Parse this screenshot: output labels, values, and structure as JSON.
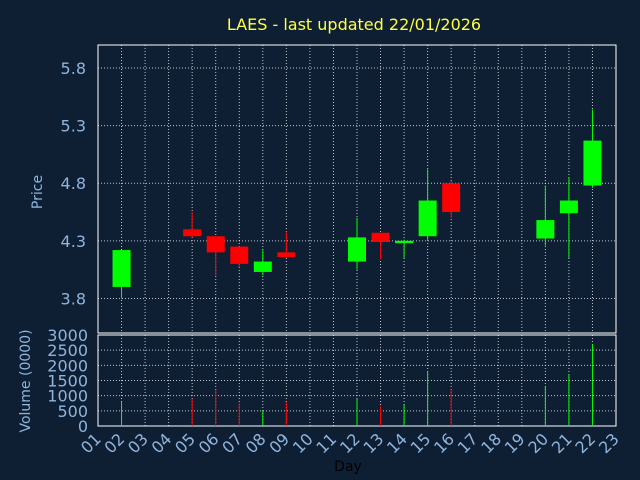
{
  "chart_data": {
    "type": "candlestick",
    "title": "LAES - last updated 22/01/2026",
    "xlabel": "Day",
    "ylabel_price": "Price",
    "ylabel_volume": "Volume (0000)",
    "x_ticks": [
      "01",
      "02",
      "03",
      "04",
      "05",
      "06",
      "07",
      "08",
      "09",
      "10",
      "11",
      "12",
      "13",
      "14",
      "15",
      "16",
      "17",
      "18",
      "19",
      "20",
      "21",
      "22",
      "23"
    ],
    "price_ticks": [
      "3.8",
      "4.3",
      "4.8",
      "5.3",
      "5.8"
    ],
    "price_ylim": [
      3.5,
      6.0
    ],
    "volume_ticks": [
      "0",
      "500",
      "1000",
      "1500",
      "2000",
      "2500",
      "3000"
    ],
    "volume_ylim": [
      0,
      3000
    ],
    "grid": true,
    "up_color": "#00ff00",
    "down_color": "#ff0000",
    "candles": [
      {
        "day": 2,
        "open": 3.9,
        "high": 4.22,
        "low": 3.8,
        "close": 4.22,
        "volume": 800
      },
      {
        "day": 5,
        "open": 4.4,
        "high": 4.55,
        "low": 4.33,
        "close": 4.34,
        "volume": 900
      },
      {
        "day": 6,
        "open": 4.34,
        "high": 4.34,
        "low": 4.0,
        "close": 4.2,
        "volume": 1200
      },
      {
        "day": 7,
        "open": 4.25,
        "high": 4.25,
        "low": 4.07,
        "close": 4.1,
        "volume": 750
      },
      {
        "day": 8,
        "open": 4.03,
        "high": 4.22,
        "low": 4.0,
        "close": 4.12,
        "volume": 500
      },
      {
        "day": 9,
        "open": 4.2,
        "high": 4.38,
        "low": 4.15,
        "close": 4.16,
        "volume": 800
      },
      {
        "day": 12,
        "open": 4.12,
        "high": 4.5,
        "low": 4.05,
        "close": 4.33,
        "volume": 900
      },
      {
        "day": 13,
        "open": 4.37,
        "high": 4.37,
        "low": 4.14,
        "close": 4.29,
        "volume": 650
      },
      {
        "day": 14,
        "open": 4.28,
        "high": 4.31,
        "low": 4.15,
        "close": 4.3,
        "volume": 700
      },
      {
        "day": 15,
        "open": 4.34,
        "high": 4.92,
        "low": 4.3,
        "close": 4.65,
        "volume": 1800
      },
      {
        "day": 16,
        "open": 4.8,
        "high": 4.82,
        "low": 4.5,
        "close": 4.55,
        "volume": 1200
      },
      {
        "day": 20,
        "open": 4.32,
        "high": 4.78,
        "low": 4.26,
        "close": 4.48,
        "volume": 1300
      },
      {
        "day": 21,
        "open": 4.54,
        "high": 4.85,
        "low": 4.15,
        "close": 4.65,
        "volume": 1700
      },
      {
        "day": 22,
        "open": 4.78,
        "high": 5.44,
        "low": 4.76,
        "close": 5.17,
        "volume": 2700
      }
    ]
  }
}
